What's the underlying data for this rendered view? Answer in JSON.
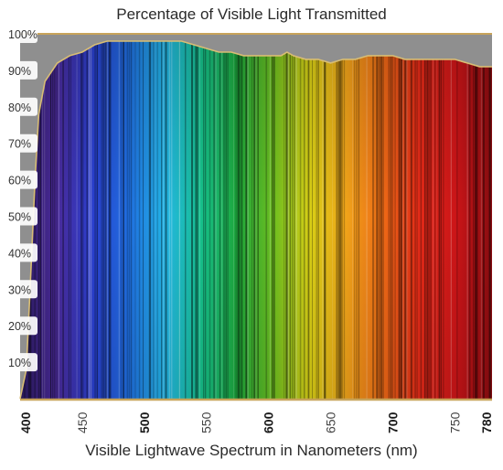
{
  "chart_data": {
    "type": "area",
    "title": "Percentage of Visible Light Transmitted",
    "xlabel": "Visible Lightwave Spectrum in Nanometers (nm)",
    "ylabel": "",
    "xlim": [
      400,
      780
    ],
    "ylim": [
      0,
      100
    ],
    "grid": true,
    "x_ticks": [
      400,
      450,
      500,
      550,
      600,
      650,
      700,
      750,
      780
    ],
    "x_tick_labels": [
      "400",
      "450",
      "500",
      "550",
      "600",
      "650",
      "700",
      "750",
      "780"
    ],
    "bold_x_ticks": [
      400,
      500,
      600,
      700,
      780
    ],
    "y_ticks": [
      10,
      20,
      30,
      40,
      50,
      60,
      70,
      80,
      90,
      100
    ],
    "y_tick_labels": [
      "10%",
      "20%",
      "30%",
      "40%",
      "50%",
      "60%",
      "70%",
      "80%",
      "90%",
      "100%"
    ],
    "series": [
      {
        "x": [
          400,
          405,
          408,
          412,
          415,
          420,
          430,
          440,
          450,
          460,
          470,
          480,
          490,
          500,
          510,
          520,
          530,
          540,
          550,
          560,
          570,
          580,
          590,
          600,
          610,
          615,
          620,
          630,
          640,
          650,
          660,
          670,
          680,
          690,
          700,
          710,
          720,
          730,
          740,
          750,
          760,
          770,
          780
        ],
        "y": [
          0,
          8,
          30,
          60,
          78,
          87,
          92,
          94,
          95,
          97,
          98,
          98,
          98,
          98,
          98,
          98,
          98,
          97,
          96,
          95,
          95,
          94,
          94,
          94,
          94,
          95,
          94,
          93,
          93,
          92,
          93,
          93,
          94,
          94,
          94,
          93,
          93,
          93,
          93,
          93,
          92,
          91,
          91
        ]
      }
    ],
    "colors": {
      "spectrum": [
        "#2a1a5e",
        "#4a2a9a",
        "#2a3fd0",
        "#1f6fe0",
        "#23b6e6",
        "#16c08a",
        "#1ea83a",
        "#6fbf1f",
        "#d9cf16",
        "#f0a31a",
        "#ee6a16",
        "#e22a18",
        "#cc1518",
        "#8a0c10"
      ],
      "curve": "#d8bd74",
      "axis": "#c8a45a"
    }
  }
}
